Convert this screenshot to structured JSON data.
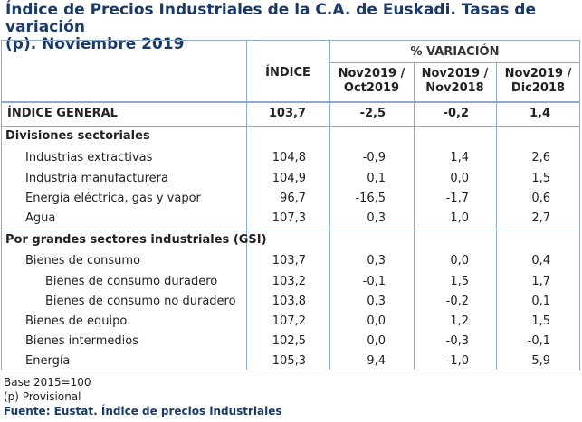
{
  "title_line1": "Índice de Precios Industriales de la C.A. de Euskadi. Tasas de variación",
  "title_line2": "(p). Noviembre 2019",
  "header": {
    "indice": "ÍNDICE",
    "variacion": "% VARIACIÓN",
    "col1_l1": "Nov2019 /",
    "col1_l2": "Oct2019",
    "col2_l1": "Nov2019 /",
    "col2_l2": "Nov2018",
    "col3_l1": "Nov2019 /",
    "col3_l2": "Dic2018"
  },
  "rows": [
    {
      "label": "ÍNDICE GENERAL",
      "indice": "103,7",
      "v1": "-2,5",
      "v2": "-0,2",
      "v3": "1,4"
    },
    {
      "label": "Divisiones sectoriales"
    },
    {
      "label": "Industrias extractivas",
      "indice": "104,8",
      "v1": "-0,9",
      "v2": "1,4",
      "v3": "2,6"
    },
    {
      "label": "Industria manufacturera",
      "indice": "104,9",
      "v1": "0,1",
      "v2": "0,0",
      "v3": "1,5"
    },
    {
      "label": "Energía eléctrica, gas y vapor",
      "indice": "96,7",
      "v1": "-16,5",
      "v2": "-1,7",
      "v3": "0,6"
    },
    {
      "label": "Agua",
      "indice": "107,3",
      "v1": "0,3",
      "v2": "1,0",
      "v3": "2,7"
    },
    {
      "label": "Por grandes sectores industriales (GSI)"
    },
    {
      "label": "Bienes de consumo",
      "indice": "103,7",
      "v1": "0,3",
      "v2": "0,0",
      "v3": "0,4"
    },
    {
      "label": "Bienes de consumo duradero",
      "indice": "103,2",
      "v1": "-0,1",
      "v2": "1,5",
      "v3": "1,7"
    },
    {
      "label": "Bienes de consumo no duradero",
      "indice": "103,8",
      "v1": "0,3",
      "v2": "-0,2",
      "v3": "0,1"
    },
    {
      "label": "Bienes de equipo",
      "indice": "107,2",
      "v1": "0,0",
      "v2": "1,2",
      "v3": "1,5"
    },
    {
      "label": "Bienes intermedios",
      "indice": "102,5",
      "v1": "0,0",
      "v2": "-0,3",
      "v3": "-0,1"
    },
    {
      "label": "Energía",
      "indice": "105,3",
      "v1": "-9,4",
      "v2": "-1,0",
      "v3": "5,9"
    }
  ],
  "footer": {
    "base": "Base 2015=100",
    "provisional": "(p) Provisional",
    "source": "Fuente: Eustat. Índice de precios industriales"
  }
}
